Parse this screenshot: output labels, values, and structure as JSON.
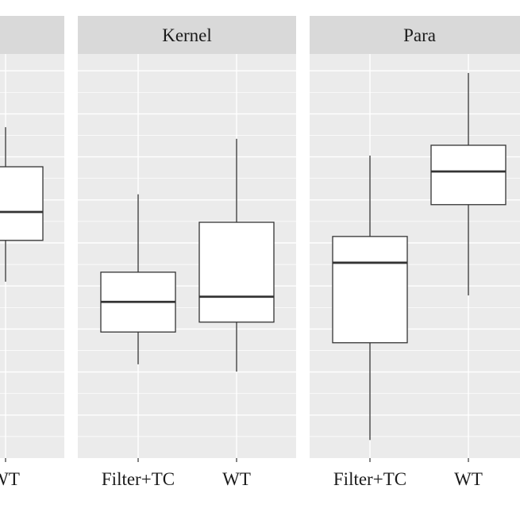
{
  "chart_data": {
    "type": "boxplot",
    "title": "",
    "xlabel": "",
    "ylabel": "",
    "ylim": [
      0,
      9.4
    ],
    "grid": true,
    "panels": [
      {
        "strip": "",
        "categories": [
          "WT"
        ],
        "boxes": [
          {
            "category": "WT",
            "whisker_low": 4.1,
            "q1": 5.06,
            "median": 5.72,
            "q3": 6.77,
            "whisker_high": 7.69
          }
        ]
      },
      {
        "strip": "Kernel",
        "categories": [
          "Filter+TC",
          "WT"
        ],
        "boxes": [
          {
            "category": "Filter+TC",
            "whisker_low": 2.18,
            "q1": 2.93,
            "median": 3.63,
            "q3": 4.32,
            "whisker_high": 6.13
          },
          {
            "category": "WT",
            "whisker_low": 2.01,
            "q1": 3.16,
            "median": 3.75,
            "q3": 5.48,
            "whisker_high": 7.42
          }
        ]
      },
      {
        "strip": "Para",
        "categories": [
          "Filter+TC",
          "WT"
        ],
        "boxes": [
          {
            "category": "Filter+TC",
            "whisker_low": 0.42,
            "q1": 2.68,
            "median": 4.54,
            "q3": 5.15,
            "whisker_high": 7.03
          },
          {
            "category": "WT",
            "whisker_low": 3.78,
            "q1": 5.89,
            "median": 6.66,
            "q3": 7.27,
            "whisker_high": 8.95
          }
        ]
      }
    ],
    "colors": {
      "panel_bg": "#ebebeb",
      "strip_bg": "#d9d9d9",
      "grid": "#ffffff",
      "box_fill": "#ffffff",
      "line": "#333333"
    }
  }
}
